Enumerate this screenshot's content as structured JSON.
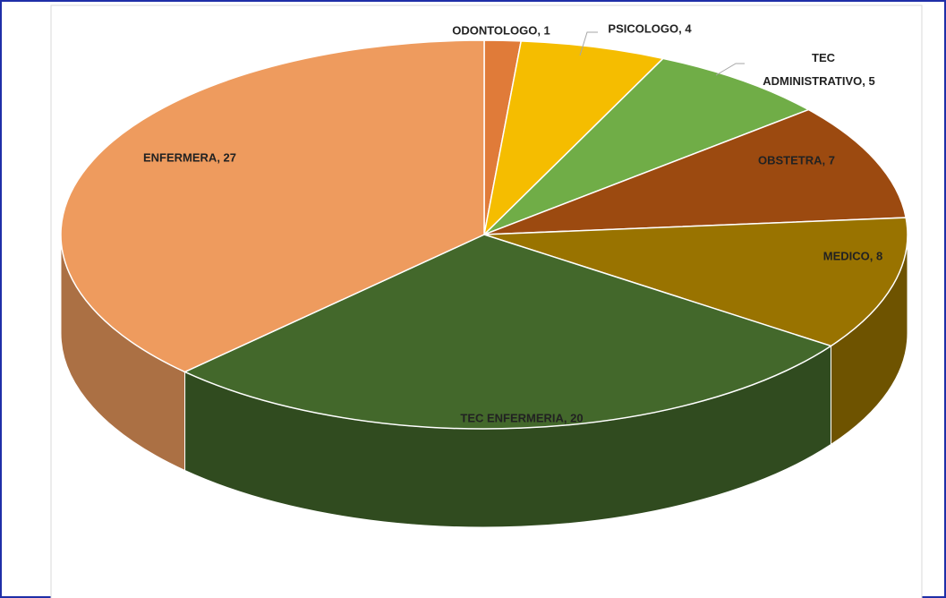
{
  "chart_data": {
    "type": "pie3d",
    "categories": [
      "ODONTOLOGO",
      "PSICOLOGO",
      "TEC ADMINISTRATIVO",
      "OBSTETRA",
      "MEDICO",
      "TEC ENFERMERIA",
      "ENFERMERA"
    ],
    "values": [
      1,
      4,
      5,
      7,
      8,
      20,
      27
    ],
    "value_labels": [
      "ODONTOLOGO, 1",
      "PSICOLOGO, 4",
      "TEC ADMINISTRATIVO, 5",
      "OBSTETRA, 7",
      "MEDICO, 8",
      "TEC ENFERMERIA, 20",
      "ENFERMERA, 27"
    ],
    "colors": [
      "#e07b39",
      "#f5bd00",
      "#70ad47",
      "#9c4a10",
      "#997300",
      "#43682b",
      "#ee9b5e"
    ]
  }
}
